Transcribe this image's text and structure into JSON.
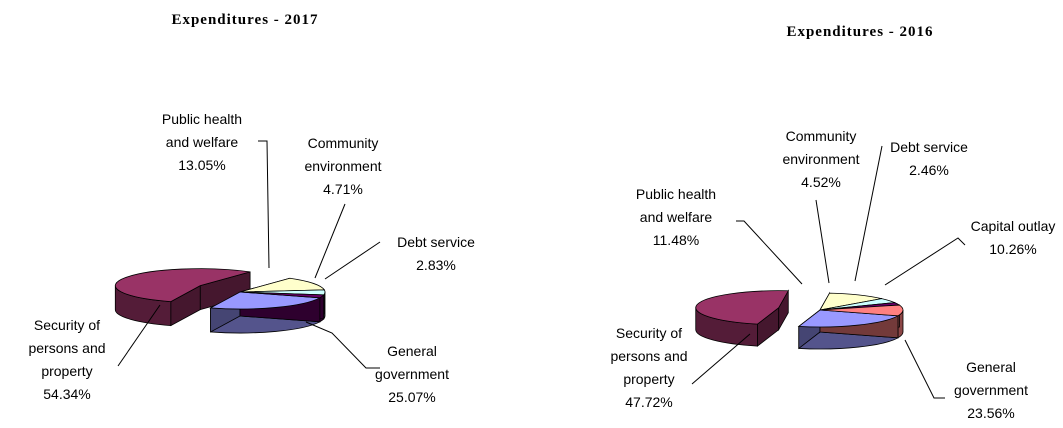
{
  "chart_data": [
    {
      "type": "pie",
      "title": "Expenditures -  2017",
      "categories": [
        "General government",
        "Security of persons and property",
        "Public health and welfare",
        "Community environment",
        "Debt service"
      ],
      "values": [
        25.07,
        54.34,
        13.05,
        4.71,
        2.83
      ],
      "value_labels": [
        "25.07%",
        "54.34%",
        "13.05%",
        "4.71%",
        "2.83%"
      ],
      "label_lines": [
        [
          "General",
          "government",
          "25.07%"
        ],
        [
          "Security of",
          "persons and",
          "property",
          "54.34%"
        ],
        [
          "Public health",
          "and welfare",
          "13.05%"
        ],
        [
          "Community",
          "environment",
          "4.71%"
        ],
        [
          "Debt service",
          "2.83%"
        ]
      ],
      "colors": [
        "#9999ff",
        "#993366",
        "#ffffcc",
        "#ccffff",
        "#660066"
      ],
      "exploded": [
        "Security of persons and property"
      ],
      "style": "3d"
    },
    {
      "type": "pie",
      "title": "Expenditures -  2016",
      "categories": [
        "General government",
        "Security of persons and property",
        "Public health and welfare",
        "Community environment",
        "Debt service",
        "Capital outlay"
      ],
      "values": [
        23.56,
        47.72,
        11.48,
        4.52,
        2.46,
        10.26
      ],
      "value_labels": [
        "23.56%",
        "47.72%",
        "11.48%",
        "4.52%",
        "2.46%",
        "10.26%"
      ],
      "label_lines": [
        [
          "General",
          "government",
          "23.56%"
        ],
        [
          "Security of",
          "persons and",
          "property",
          "47.72%"
        ],
        [
          "Public health",
          "and welfare",
          "11.48%"
        ],
        [
          "Community",
          "environment",
          "4.52%"
        ],
        [
          "Debt service",
          "2.46%"
        ],
        [
          "Capital outlay",
          "10.26%"
        ]
      ],
      "colors": [
        "#9999ff",
        "#993366",
        "#ffffcc",
        "#ccffff",
        "#660066",
        "#ff8080"
      ],
      "exploded": [
        "Security of persons and property"
      ],
      "style": "3d"
    }
  ]
}
